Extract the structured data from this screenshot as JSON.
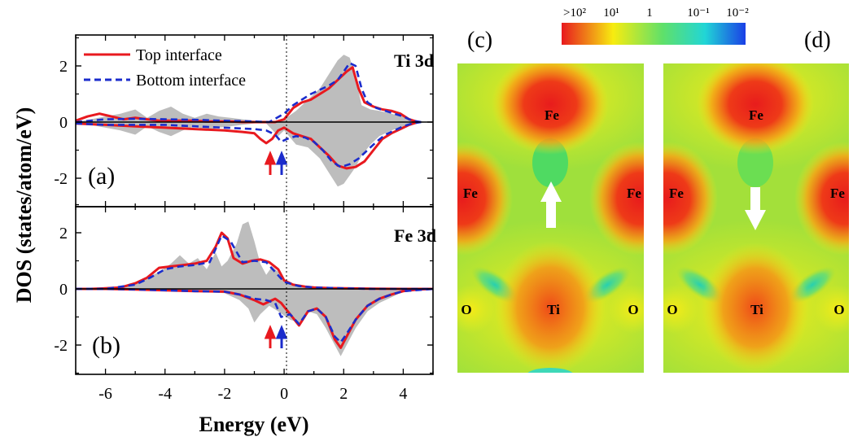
{
  "chart_data": [
    {
      "panel": "(a)",
      "type": "line",
      "title": "Ti 3d",
      "xlabel": "Energy (eV)",
      "ylabel": "DOS (states/atom/eV)",
      "xlim": [
        -7,
        5
      ],
      "ylim": [
        -3,
        3
      ],
      "xticks": [
        -6,
        -4,
        -2,
        0,
        2,
        4
      ],
      "yticks": [
        -2,
        0,
        2
      ],
      "legend": "top-left",
      "series": [
        {
          "name": "Top interface",
          "style": "solid",
          "color": "#e8191f",
          "up": {
            "x": [
              -7,
              -6.6,
              -6.2,
              -5.8,
              -5.4,
              -5,
              -4.6,
              -4.2,
              -3.8,
              -3.4,
              -3,
              -2.6,
              -2.2,
              -1.8,
              -1.4,
              -1,
              -0.6,
              -0.3,
              0,
              0.3,
              0.6,
              0.9,
              1.2,
              1.5,
              1.8,
              2.1,
              2.3,
              2.5,
              2.7,
              3,
              3.3,
              3.6,
              3.9,
              4.2,
              4.5
            ],
            "y": [
              0.05,
              0.2,
              0.3,
              0.2,
              0.1,
              0.15,
              0.1,
              0.05,
              0.05,
              0.05,
              0.05,
              0.02,
              0.02,
              0.02,
              0.0,
              0.0,
              0.0,
              0.0,
              0.1,
              0.5,
              0.7,
              0.8,
              1.0,
              1.2,
              1.5,
              1.8,
              1.95,
              1.2,
              0.7,
              0.55,
              0.45,
              0.4,
              0.3,
              0.1,
              0.0
            ]
          },
          "down": {
            "x": [
              -7,
              -6,
              -5,
              -4,
              -3,
              -2,
              -1.4,
              -1,
              -0.8,
              -0.6,
              -0.4,
              -0.2,
              0,
              0.3,
              0.6,
              0.9,
              1.2,
              1.5,
              1.8,
              2.1,
              2.4,
              2.7,
              3,
              3.3,
              3.6,
              3.9,
              4.2,
              4.5
            ],
            "y": [
              -0.05,
              -0.1,
              -0.15,
              -0.2,
              -0.25,
              -0.3,
              -0.35,
              -0.4,
              -0.6,
              -0.75,
              -0.6,
              -0.3,
              -0.2,
              -0.4,
              -0.5,
              -0.6,
              -0.9,
              -1.2,
              -1.55,
              -1.65,
              -1.6,
              -1.4,
              -1.0,
              -0.6,
              -0.4,
              -0.25,
              -0.1,
              0.0
            ]
          }
        },
        {
          "name": "Bottom interface",
          "style": "dashed",
          "color": "#1b2ccc",
          "up": {
            "x": [
              -7,
              -6,
              -5,
              -4,
              -3,
              -2,
              -1,
              -0.5,
              0,
              0.3,
              0.6,
              0.9,
              1.2,
              1.5,
              1.8,
              2.0,
              2.2,
              2.4,
              2.6,
              2.8,
              3.1,
              3.4,
              3.7,
              4,
              4.3,
              4.6
            ],
            "y": [
              0.0,
              0.1,
              0.12,
              0.1,
              0.08,
              0.05,
              0.02,
              0.0,
              0.3,
              0.6,
              0.8,
              1.0,
              1.15,
              1.3,
              1.5,
              1.8,
              2.1,
              2.0,
              1.2,
              0.7,
              0.5,
              0.4,
              0.3,
              0.2,
              0.05,
              0.0
            ]
          },
          "down": {
            "x": [
              -7,
              -6,
              -5,
              -4,
              -3,
              -2,
              -1,
              -0.6,
              -0.3,
              -0.1,
              0.1,
              0.4,
              0.7,
              1.0,
              1.3,
              1.6,
              1.9,
              2.2,
              2.5,
              2.8,
              3.1,
              3.4,
              3.7,
              4,
              4.3,
              4.6
            ],
            "y": [
              -0.05,
              -0.1,
              -0.1,
              -0.1,
              -0.15,
              -0.2,
              -0.25,
              -0.3,
              -0.45,
              -0.7,
              -0.6,
              -0.5,
              -0.55,
              -0.7,
              -1.0,
              -1.4,
              -1.6,
              -1.5,
              -1.3,
              -1.0,
              -0.7,
              -0.45,
              -0.3,
              -0.15,
              -0.05,
              0.0
            ]
          }
        }
      ],
      "total_dos": {
        "up": {
          "x": [
            -7,
            -6.5,
            -6,
            -5.5,
            -5,
            -4.6,
            -4.2,
            -3.8,
            -3.4,
            -3,
            -2.6,
            -2.2,
            -1.8,
            -1.4,
            -1,
            -0.6,
            -0.2,
            0,
            0.4,
            0.8,
            1.2,
            1.5,
            1.8,
            2.0,
            2.2,
            2.4,
            2.6,
            2.9,
            3.2,
            3.6,
            4,
            4.4,
            4.8
          ],
          "y": [
            0.0,
            0.1,
            0.2,
            0.3,
            0.45,
            0.15,
            0.4,
            0.55,
            0.3,
            0.15,
            0.3,
            0.2,
            0.15,
            0.1,
            0.05,
            0.0,
            0.0,
            0.1,
            0.4,
            0.8,
            1.2,
            1.7,
            2.2,
            2.4,
            2.3,
            1.6,
            0.6,
            0.45,
            0.4,
            0.3,
            0.2,
            0.05,
            0.0
          ]
        },
        "down": {
          "x": [
            -7,
            -6.5,
            -6,
            -5.5,
            -5,
            -4.6,
            -4.2,
            -3.8,
            -3.4,
            -3,
            -2.6,
            -2.2,
            -1.8,
            -1.4,
            -1,
            -0.6,
            -0.2,
            0,
            0.4,
            0.8,
            1.2,
            1.5,
            1.8,
            2.0,
            2.2,
            2.4,
            2.6,
            2.9,
            3.2,
            3.6,
            4,
            4.4,
            4.8
          ],
          "y": [
            0.0,
            -0.1,
            -0.2,
            -0.3,
            -0.45,
            -0.15,
            -0.35,
            -0.5,
            -0.3,
            -0.15,
            -0.3,
            -0.2,
            -0.15,
            -0.1,
            -0.05,
            -0.05,
            -0.5,
            -0.3,
            -0.8,
            -0.9,
            -1.3,
            -1.8,
            -2.3,
            -2.2,
            -1.9,
            -1.6,
            -1.2,
            -0.8,
            -0.5,
            -0.3,
            -0.15,
            -0.05,
            0.0
          ]
        }
      },
      "annotations": {
        "panel_label": "(a)",
        "arrow_colors": [
          "#e8191f",
          "#1b2ccc"
        ]
      }
    },
    {
      "panel": "(b)",
      "type": "line",
      "title": "Fe 3d",
      "xlim": [
        -7,
        5
      ],
      "ylim": [
        -3,
        3
      ],
      "xticks": [
        -6,
        -4,
        -2,
        0,
        2,
        4
      ],
      "yticks": [
        -2,
        0,
        2
      ],
      "series": [
        {
          "name": "Top interface",
          "style": "solid",
          "color": "#e8191f",
          "up": {
            "x": [
              -7,
              -6.5,
              -6,
              -5.5,
              -5,
              -4.6,
              -4.2,
              -3.8,
              -3.4,
              -3,
              -2.6,
              -2.3,
              -2.1,
              -1.9,
              -1.7,
              -1.4,
              -1.1,
              -0.8,
              -0.5,
              -0.2,
              0,
              0.3,
              0.7,
              1,
              1.5,
              2,
              3,
              4,
              5
            ],
            "y": [
              0.0,
              0.0,
              0.02,
              0.05,
              0.2,
              0.4,
              0.75,
              0.8,
              0.85,
              0.9,
              1.0,
              1.5,
              2.0,
              1.8,
              1.1,
              0.9,
              1.0,
              1.05,
              0.95,
              0.7,
              0.3,
              0.15,
              0.08,
              0.05,
              0.03,
              0.02,
              0.01,
              0.0,
              0.0
            ]
          },
          "down": {
            "x": [
              -7,
              -6,
              -5,
              -4,
              -3,
              -2,
              -1.5,
              -1,
              -0.7,
              -0.5,
              -0.3,
              -0.1,
              0.2,
              0.5,
              0.8,
              1.1,
              1.4,
              1.7,
              1.9,
              2.1,
              2.4,
              2.8,
              3.2,
              3.6,
              4,
              4.5,
              5
            ],
            "y": [
              0.0,
              0.0,
              -0.02,
              -0.05,
              -0.08,
              -0.1,
              -0.2,
              -0.4,
              -0.55,
              -0.45,
              -0.35,
              -0.5,
              -0.9,
              -1.3,
              -0.8,
              -0.7,
              -1.0,
              -1.8,
              -2.1,
              -1.7,
              -1.1,
              -0.6,
              -0.35,
              -0.2,
              -0.08,
              -0.02,
              0.0
            ]
          }
        },
        {
          "name": "Bottom interface",
          "style": "dashed",
          "color": "#1b2ccc",
          "up": {
            "x": [
              -7,
              -6,
              -5,
              -4.5,
              -4,
              -3.5,
              -3,
              -2.5,
              -2.1,
              -1.8,
              -1.4,
              -1,
              -0.6,
              -0.3,
              0,
              0.5,
              1,
              2,
              3,
              4,
              5
            ],
            "y": [
              0.0,
              0.0,
              0.15,
              0.4,
              0.7,
              0.8,
              0.85,
              0.95,
              1.9,
              1.7,
              0.95,
              1.0,
              0.95,
              0.6,
              0.25,
              0.1,
              0.05,
              0.02,
              0.0,
              0.0,
              0.0
            ]
          },
          "down": {
            "x": [
              -7,
              -6,
              -5,
              -4,
              -3,
              -2,
              -1.5,
              -1,
              -0.6,
              -0.3,
              -0.1,
              0.2,
              0.5,
              0.8,
              1.1,
              1.4,
              1.7,
              1.9,
              2.1,
              2.4,
              2.8,
              3.2,
              3.6,
              4,
              5
            ],
            "y": [
              0.0,
              0.0,
              -0.02,
              -0.05,
              -0.08,
              -0.1,
              -0.2,
              -0.35,
              -0.4,
              -0.5,
              -1.0,
              -0.9,
              -1.25,
              -0.8,
              -0.7,
              -1.0,
              -1.7,
              -1.9,
              -1.6,
              -1.1,
              -0.6,
              -0.35,
              -0.2,
              -0.08,
              0.0
            ]
          }
        }
      ],
      "total_dos": {
        "up": {
          "x": [
            -7,
            -6,
            -5.4,
            -5,
            -4.6,
            -4.2,
            -3.8,
            -3.5,
            -3.2,
            -2.9,
            -2.6,
            -2.3,
            -2.1,
            -1.9,
            -1.6,
            -1.4,
            -1.2,
            -1.0,
            -0.8,
            -0.6,
            -0.4,
            -0.2,
            0,
            0.3,
            0.6,
            1,
            2,
            3,
            4,
            5
          ],
          "y": [
            0.0,
            0.0,
            0.05,
            0.2,
            0.4,
            0.6,
            0.9,
            1.2,
            0.9,
            1.1,
            0.7,
            1.3,
            0.8,
            1.0,
            1.6,
            2.3,
            2.4,
            1.7,
            0.9,
            0.5,
            0.8,
            0.6,
            0.3,
            0.2,
            0.1,
            0.05,
            0.02,
            0.0,
            0.0,
            0.0
          ]
        },
        "down": {
          "x": [
            -7,
            -6,
            -5,
            -4,
            -3,
            -2,
            -1.5,
            -1.2,
            -1,
            -0.8,
            -0.5,
            -0.2,
            0.2,
            0.5,
            0.8,
            1.1,
            1.4,
            1.7,
            1.9,
            2.1,
            2.4,
            2.8,
            3.2,
            3.6,
            4,
            5
          ],
          "y": [
            0.0,
            0.0,
            -0.02,
            -0.05,
            -0.1,
            -0.15,
            -0.4,
            -0.7,
            -1.2,
            -0.9,
            -0.6,
            -0.8,
            -1.1,
            -1.2,
            -0.8,
            -0.9,
            -1.4,
            -2.0,
            -2.4,
            -2.0,
            -1.4,
            -0.8,
            -0.5,
            -0.3,
            -0.1,
            0.0
          ]
        }
      },
      "annotations": {
        "panel_label": "(b)",
        "arrow_colors": [
          "#e8191f",
          "#1b2ccc"
        ]
      }
    },
    {
      "panel": "(c)",
      "type": "heatmap",
      "atoms": [
        "Fe",
        "Fe",
        "Fe",
        "O",
        "Ti",
        "O"
      ],
      "spin_arrow": "up"
    },
    {
      "panel": "(d)",
      "type": "heatmap",
      "atoms": [
        "Fe",
        "Fe",
        "Fe",
        "O",
        "Ti",
        "O"
      ],
      "spin_arrow": "down"
    }
  ],
  "colorbar": {
    "tick_labels": [
      ">10²",
      "10¹",
      "1",
      "10⁻¹",
      "10⁻²"
    ],
    "colors": [
      "#e8191f",
      "#f7ec10",
      "#5fe06a",
      "#21d6d6",
      "#1a3fe6"
    ]
  },
  "colors": {
    "total_fill": "#bdbdbd",
    "heatmap_bg": "#9fe03c"
  }
}
